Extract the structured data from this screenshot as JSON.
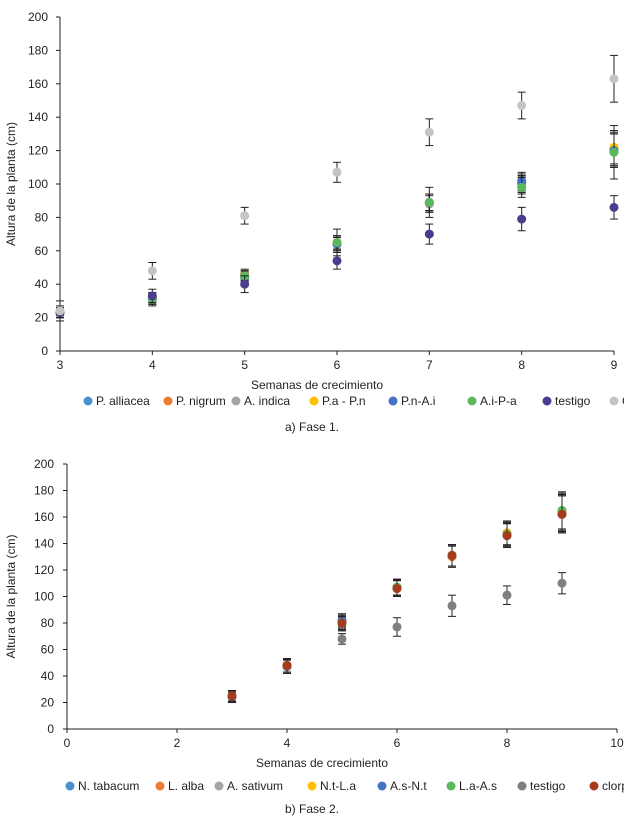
{
  "chart_data": [
    {
      "type": "scatter",
      "caption": "a) Fase 1.",
      "xlabel": "Semanas de crecimiento",
      "ylabel": "Altura de la planta (cm)",
      "xlim": [
        3,
        9
      ],
      "ylim": [
        0,
        200
      ],
      "xticks": [
        3,
        4,
        5,
        6,
        7,
        8,
        9
      ],
      "yticks": [
        0,
        20,
        40,
        60,
        80,
        100,
        120,
        140,
        160,
        180,
        200
      ],
      "x": [
        3,
        4,
        5,
        6,
        7,
        8,
        9
      ],
      "series": [
        {
          "name": "P. alliacea",
          "color": "#4a90d0",
          "values": [
            23,
            31,
            44,
            64,
            89,
            102,
            120
          ],
          "errors": [
            3,
            3,
            3,
            4,
            5,
            5,
            10
          ]
        },
        {
          "name": "P. nigrum",
          "color": "#ed7d31",
          "values": [
            23,
            32,
            46,
            65,
            89,
            100,
            121
          ],
          "errors": [
            3,
            3,
            3,
            4,
            5,
            5,
            10
          ]
        },
        {
          "name": "A. indica",
          "color": "#a5a5a5",
          "values": [
            23,
            31,
            45,
            65,
            88,
            99,
            120
          ],
          "errors": [
            3,
            3,
            3,
            4,
            5,
            5,
            10
          ]
        },
        {
          "name": "P.a - P.n",
          "color": "#ffc000",
          "values": [
            24,
            32,
            45,
            65,
            89,
            100,
            122
          ],
          "errors": [
            3,
            3,
            3,
            4,
            5,
            5,
            10
          ]
        },
        {
          "name": "P.n-A.i",
          "color": "#4472c4",
          "values": [
            23,
            31,
            45,
            64,
            89,
            101,
            120
          ],
          "errors": [
            3,
            3,
            3,
            4,
            5,
            5,
            10
          ]
        },
        {
          "name": "A.i-P-a",
          "color": "#5cb85c",
          "values": [
            23,
            31,
            45,
            65,
            89,
            98,
            119
          ],
          "errors": [
            3,
            4,
            3,
            8,
            9,
            6,
            16
          ]
        },
        {
          "name": "testigo",
          "color": "#4b3c8f",
          "values": [
            23,
            33,
            40,
            54,
            70,
            79,
            86
          ],
          "errors": [
            3,
            4,
            5,
            5,
            6,
            7,
            7
          ]
        },
        {
          "name": "Clorpirifos",
          "color": "#c4c4c4",
          "values": [
            24,
            48,
            81,
            107,
            131,
            147,
            163
          ],
          "errors": [
            6,
            5,
            5,
            6,
            8,
            8,
            14
          ]
        }
      ]
    },
    {
      "type": "scatter",
      "caption": "b) Fase 2.",
      "xlabel": "Semanas de crecimiento",
      "ylabel": "Altura de la planta (cm)",
      "xlim": [
        0,
        10
      ],
      "ylim": [
        0,
        200
      ],
      "xticks": [
        0,
        2,
        4,
        6,
        8,
        10
      ],
      "yticks": [
        0,
        20,
        40,
        60,
        80,
        100,
        120,
        140,
        160,
        180,
        200
      ],
      "x": [
        3,
        4,
        5,
        6,
        7,
        8,
        9
      ],
      "series": [
        {
          "name": "N. tabacum",
          "color": "#4a90d0",
          "values": [
            25,
            48,
            81,
            107,
            131,
            147,
            163
          ],
          "errors": [
            4,
            5,
            5,
            6,
            8,
            9,
            14
          ]
        },
        {
          "name": "L. alba",
          "color": "#ed7d31",
          "values": [
            25,
            48,
            80,
            106,
            130,
            146,
            163
          ],
          "errors": [
            4,
            5,
            5,
            6,
            8,
            9,
            14
          ]
        },
        {
          "name": "A. sativum",
          "color": "#a5a5a5",
          "values": [
            25,
            47,
            79,
            106,
            131,
            148,
            163
          ],
          "errors": [
            4,
            5,
            5,
            6,
            8,
            9,
            14
          ]
        },
        {
          "name": "N.t-L.a",
          "color": "#ffc000",
          "values": [
            25,
            48,
            80,
            107,
            131,
            148,
            164
          ],
          "errors": [
            4,
            5,
            5,
            6,
            8,
            9,
            14
          ]
        },
        {
          "name": "A.s-N.t",
          "color": "#4472c4",
          "values": [
            25,
            48,
            82,
            107,
            131,
            146,
            162
          ],
          "errors": [
            4,
            5,
            5,
            6,
            8,
            9,
            14
          ]
        },
        {
          "name": "L.a-A.s",
          "color": "#5cb85c",
          "values": [
            25,
            48,
            80,
            107,
            131,
            147,
            165
          ],
          "errors": [
            4,
            5,
            5,
            6,
            8,
            9,
            14
          ]
        },
        {
          "name": "testigo",
          "color": "#7f7f7f",
          "values": [
            24,
            47,
            68,
            77,
            93,
            101,
            110
          ],
          "errors": [
            4,
            5,
            4,
            7,
            8,
            7,
            8
          ]
        },
        {
          "name": "clorpirifos",
          "color": "#a53a1d",
          "values": [
            25,
            48,
            80,
            106,
            131,
            146,
            162
          ],
          "errors": [
            4,
            5,
            5,
            6,
            8,
            9,
            14
          ]
        }
      ]
    }
  ]
}
